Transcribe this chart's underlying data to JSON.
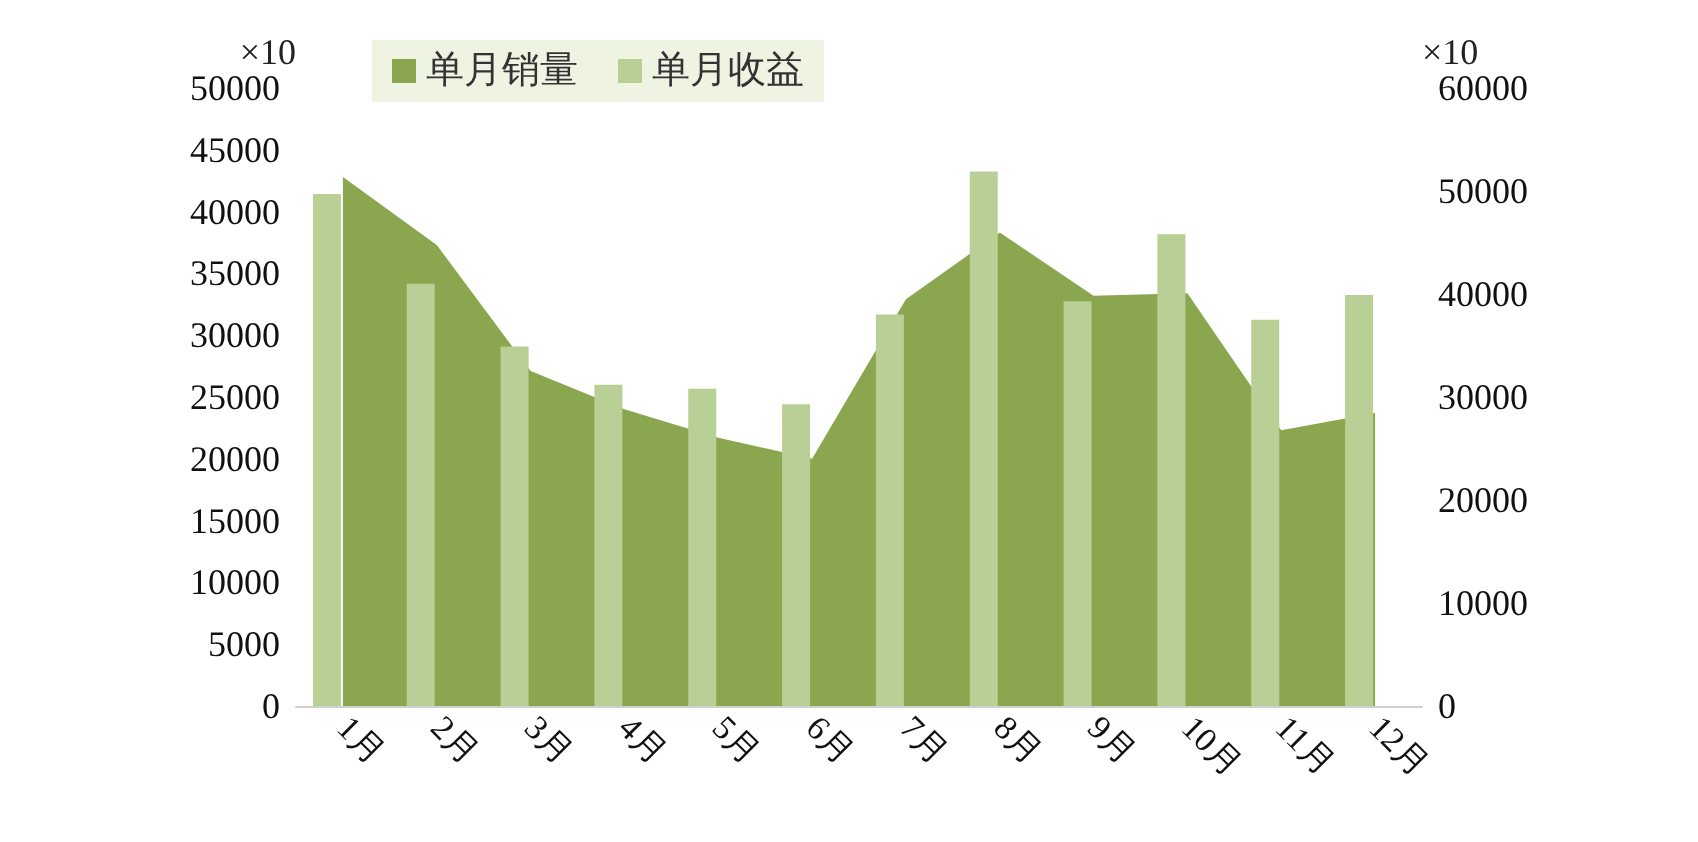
{
  "chart_data": {
    "type": "area",
    "categories": [
      "1月",
      "2月",
      "3月",
      "4月",
      "5月",
      "6月",
      "7月",
      "8月",
      "9月",
      "10月",
      "11月",
      "12月"
    ],
    "series": [
      {
        "name": "单月销量",
        "color": "#8aa64e",
        "values": [
          42800,
          37300,
          27100,
          24000,
          21700,
          20000,
          32900,
          38300,
          33200,
          33400,
          22300,
          23700
        ]
      },
      {
        "name": "单月收益",
        "type": "bar",
        "axis": "y2",
        "color": "#b8cf96",
        "values": [
          49700,
          41000,
          34900,
          31200,
          30800,
          29300,
          38000,
          51900,
          39300,
          45800,
          37500,
          39900
        ]
      }
    ],
    "ylabel": "×10",
    "y2label": "×10",
    "ylim": [
      0,
      50000
    ],
    "yticks": [
      0,
      5000,
      10000,
      15000,
      20000,
      25000,
      30000,
      35000,
      40000,
      45000,
      50000
    ],
    "y2lim": [
      0,
      60000
    ],
    "y2ticks": [
      0,
      10000,
      20000,
      30000,
      40000,
      50000,
      60000
    ],
    "legend": "top",
    "grid": false
  }
}
